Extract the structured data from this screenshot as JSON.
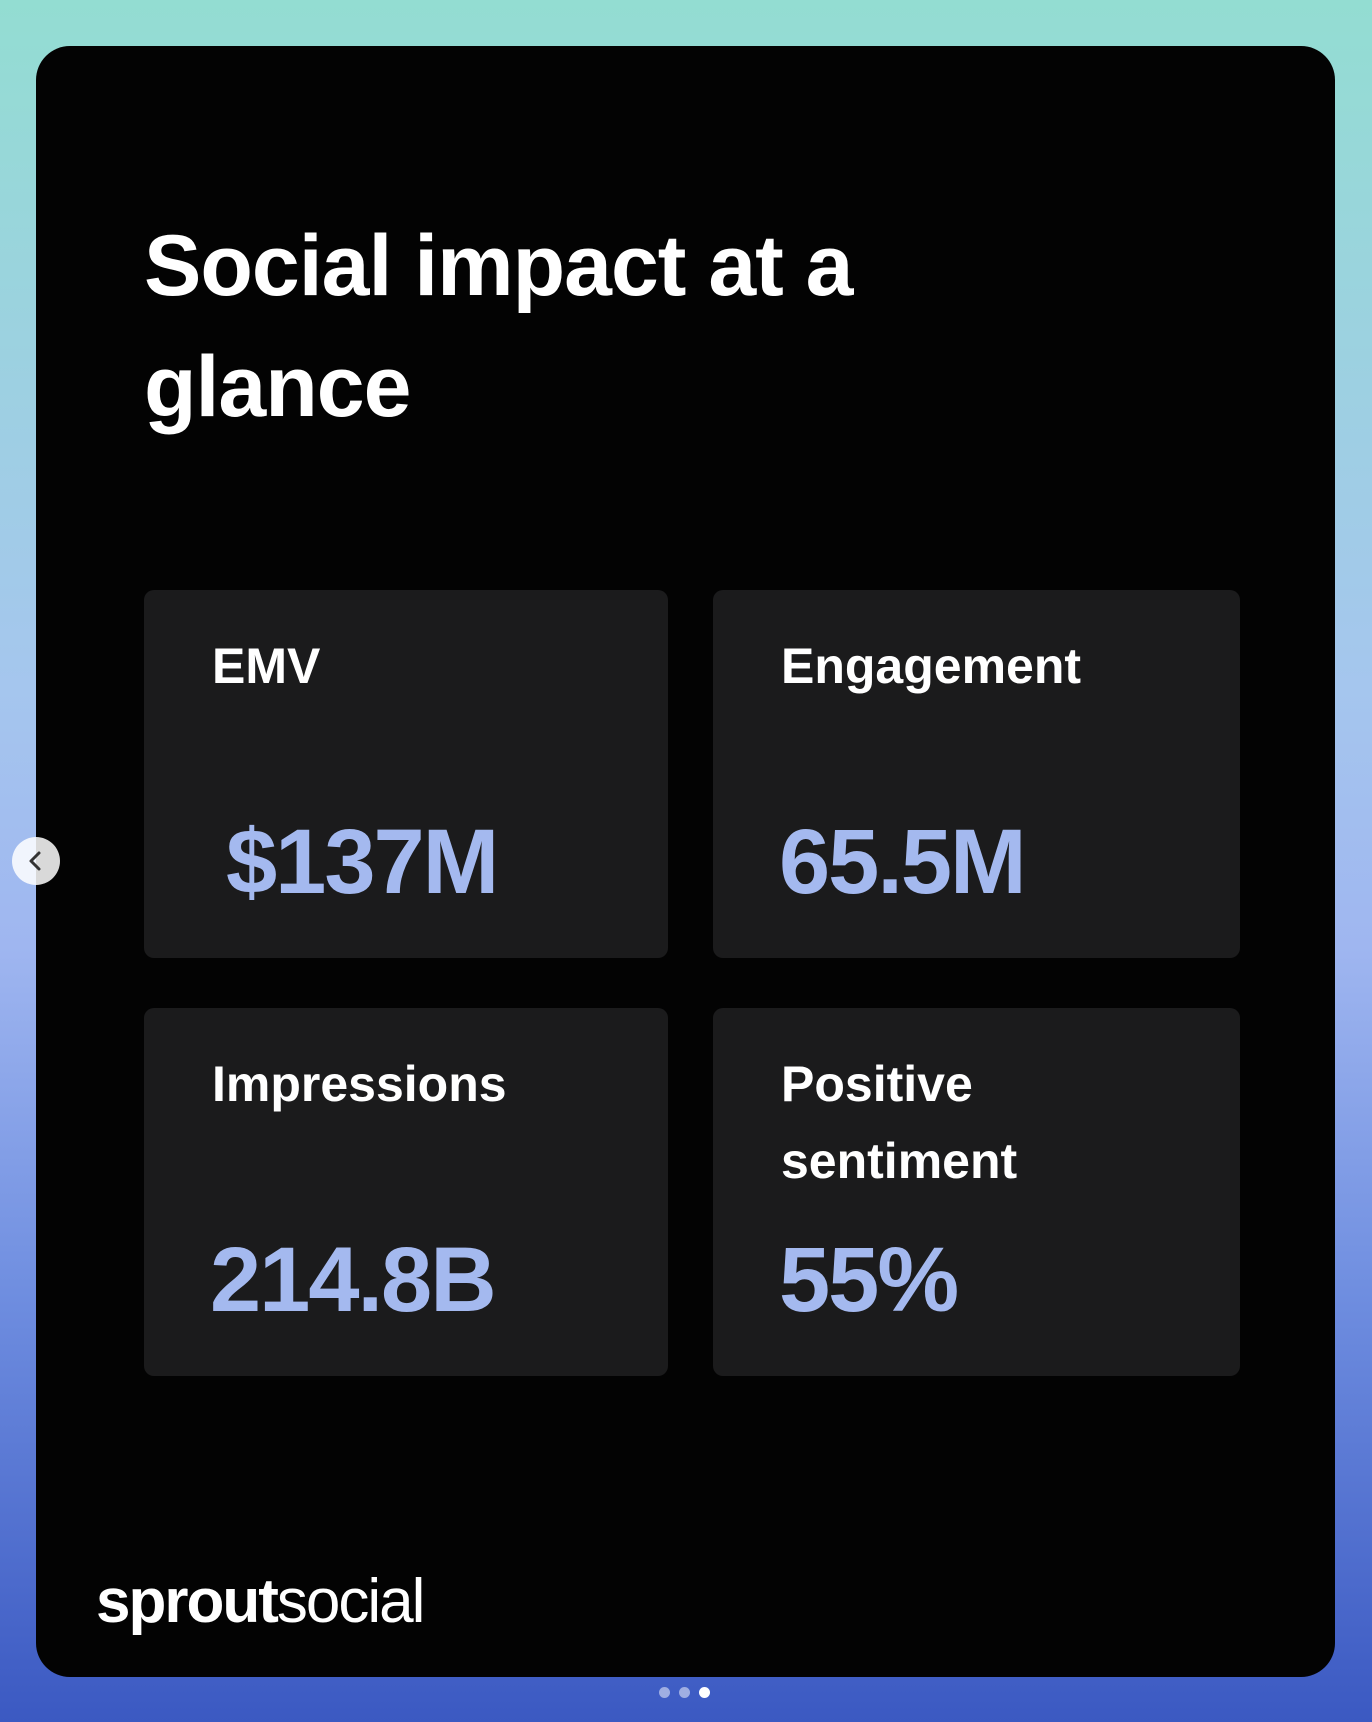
{
  "title": "Social impact at a glance",
  "metrics": [
    {
      "label": "EMV",
      "value": "$137M"
    },
    {
      "label": "Engagement",
      "value": "65.5M"
    },
    {
      "label": "Impressions",
      "value": "214.8B"
    },
    {
      "label": "Positive sentiment",
      "value": "55%"
    }
  ],
  "brand": {
    "bold": "sprout",
    "light": "social"
  }
}
